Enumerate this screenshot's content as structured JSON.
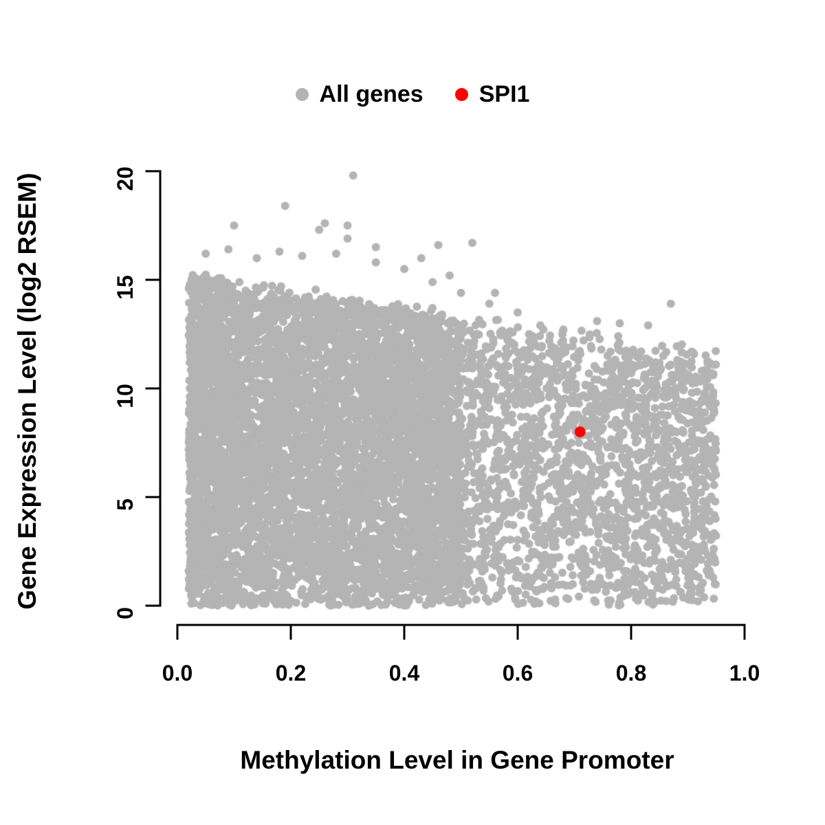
{
  "chart_data": {
    "type": "scatter",
    "title": "",
    "xlabel": "Methylation Level in Gene Promoter",
    "ylabel": "Gene Expression Level (log2 RSEM)",
    "xlim": [
      0,
      1
    ],
    "ylim": [
      0,
      20
    ],
    "x_ticks": [
      0.0,
      0.2,
      0.4,
      0.6,
      0.8,
      1.0
    ],
    "x_tick_labels": [
      "0.0",
      "0.2",
      "0.4",
      "0.6",
      "0.8",
      "1.0"
    ],
    "y_ticks": [
      0,
      5,
      10,
      15,
      20
    ],
    "y_tick_labels": [
      "0",
      "5",
      "10",
      "15",
      "20"
    ],
    "grid": false,
    "legend_position": "top",
    "legend": [
      {
        "label": "All genes",
        "color": "#b4b4b4"
      },
      {
        "label": "SPI1",
        "color": "#ff0000"
      }
    ],
    "series": [
      {
        "name": "All genes",
        "color": "#b4b4b4",
        "marker_radius": 6,
        "distribution": {
          "seed": 1337,
          "dense_block": {
            "n": 6200,
            "x_min": 0.02,
            "x_range": 0.48,
            "x_pow": 1.15,
            "top_intercept": 15.2,
            "top_slope": -4.0,
            "top_noise": 0.35,
            "y_pow": 0.9
          },
          "right_block": {
            "n": 2400,
            "x_min": 0.42,
            "x_range": 0.53,
            "top_intercept": 14.6,
            "top_slope": -3.5,
            "top_noise": 0.8,
            "y_pow": 0.85
          }
        },
        "notable_points": [
          [
            0.31,
            19.8
          ],
          [
            0.19,
            18.4
          ],
          [
            0.26,
            17.6
          ],
          [
            0.3,
            17.5
          ],
          [
            0.25,
            17.3
          ],
          [
            0.1,
            17.5
          ],
          [
            0.09,
            16.4
          ],
          [
            0.05,
            16.2
          ],
          [
            0.3,
            16.9
          ],
          [
            0.35,
            16.5
          ],
          [
            0.22,
            16.1
          ],
          [
            0.18,
            16.3
          ],
          [
            0.43,
            16.0
          ],
          [
            0.46,
            16.6
          ],
          [
            0.52,
            16.7
          ],
          [
            0.35,
            15.8
          ],
          [
            0.4,
            15.5
          ],
          [
            0.45,
            14.9
          ],
          [
            0.28,
            16.2
          ],
          [
            0.14,
            16.0
          ],
          [
            0.48,
            15.2
          ],
          [
            0.5,
            14.4
          ],
          [
            0.55,
            13.9
          ],
          [
            0.56,
            14.4
          ],
          [
            0.6,
            13.5
          ],
          [
            0.64,
            12.9
          ],
          [
            0.62,
            12.5
          ],
          [
            0.68,
            12.2
          ],
          [
            0.74,
            13.1
          ],
          [
            0.78,
            13.0
          ],
          [
            0.83,
            12.9
          ],
          [
            0.87,
            13.9
          ]
        ]
      },
      {
        "name": "SPI1",
        "color": "#ff0000",
        "marker_radius": 8,
        "points": [
          [
            0.71,
            8.0
          ]
        ]
      }
    ]
  }
}
